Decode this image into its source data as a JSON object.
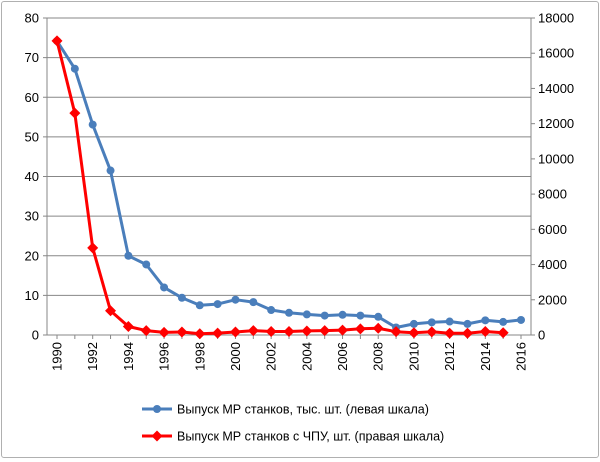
{
  "chart_data": {
    "type": "line",
    "x": [
      1990,
      1991,
      1992,
      1993,
      1994,
      1995,
      1996,
      1997,
      1998,
      1999,
      2000,
      2001,
      2002,
      2003,
      2004,
      2005,
      2006,
      2007,
      2008,
      2009,
      2010,
      2011,
      2012,
      2013,
      2014,
      2015,
      2016
    ],
    "x_tick_labels": [
      "1990",
      "1992",
      "1994",
      "1996",
      "1998",
      "2000",
      "2002",
      "2004",
      "2006",
      "2008",
      "2010",
      "2012",
      "2014",
      "2016"
    ],
    "left_axis": {
      "ylim": [
        0,
        80
      ],
      "ticks": [
        "0",
        "10",
        "20",
        "30",
        "40",
        "50",
        "60",
        "70",
        "80"
      ]
    },
    "right_axis": {
      "ylim": [
        0,
        18000
      ],
      "ticks": [
        "0",
        "2000",
        "4000",
        "6000",
        "8000",
        "10000",
        "12000",
        "14000",
        "16000",
        "18000"
      ]
    },
    "grid": true,
    "legend_position": "bottom",
    "series": [
      {
        "name": "Выпуск МР станков, тыс. шт. (левая шкала)",
        "axis": "left",
        "color": "#4a7ebb",
        "marker": "circle",
        "x": [
          1990,
          1991,
          1992,
          1993,
          1994,
          1995,
          1996,
          1997,
          1998,
          1999,
          2000,
          2001,
          2002,
          2003,
          2004,
          2005,
          2006,
          2007,
          2008,
          2009,
          2010,
          2011,
          2012,
          2013,
          2014,
          2015,
          2016
        ],
        "values": [
          74.2,
          67.2,
          53.1,
          41.5,
          20.0,
          17.8,
          12.0,
          9.4,
          7.5,
          7.8,
          8.9,
          8.3,
          6.3,
          5.6,
          5.2,
          4.9,
          5.1,
          4.9,
          4.6,
          1.9,
          2.8,
          3.2,
          3.4,
          2.8,
          3.7,
          3.3,
          3.8
        ]
      },
      {
        "name": "Выпуск МР станков с ЧПУ, шт. (правая  шкала)",
        "axis": "right",
        "color": "#ff0000",
        "marker": "diamond",
        "x": [
          1990,
          1991,
          1992,
          1993,
          1994,
          1995,
          1996,
          1997,
          1998,
          1999,
          2000,
          2001,
          2002,
          2003,
          2004,
          2005,
          2006,
          2007,
          2008,
          2009,
          2010,
          2011,
          2012,
          2013,
          2014,
          2015
        ],
        "values": [
          16700,
          12600,
          4950,
          1380,
          480,
          250,
          150,
          170,
          70,
          110,
          170,
          250,
          200,
          200,
          230,
          250,
          280,
          350,
          380,
          190,
          130,
          180,
          100,
          100,
          200,
          130
        ]
      }
    ]
  }
}
